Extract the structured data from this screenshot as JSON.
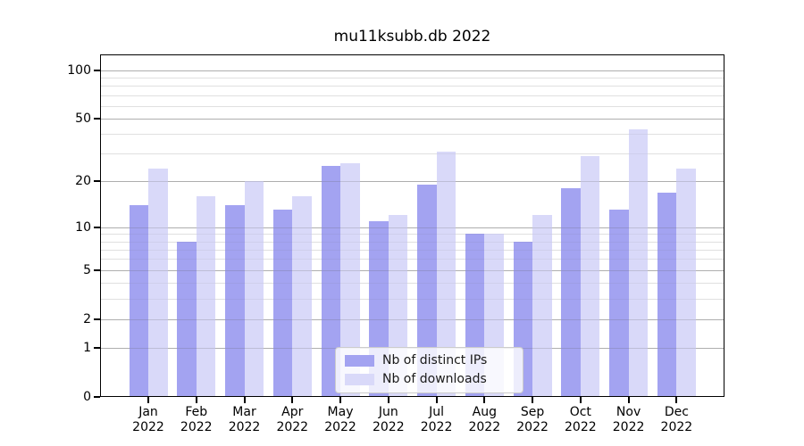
{
  "title": "mu11ksubb.db 2022",
  "colors": {
    "bar_distinct_ips": "#a3a3f1",
    "bar_downloads": "#d9d9f9",
    "grid_major": "#c6c6c6",
    "grid_minor": "#ececec",
    "axis": "#000000",
    "legend_border": "#cccccc"
  },
  "legend": {
    "items": [
      {
        "label": "Nb of distinct IPs",
        "color_key": "bar_distinct_ips"
      },
      {
        "label": "Nb of downloads",
        "color_key": "bar_downloads"
      }
    ]
  },
  "axes": {
    "y_scale": "log1p",
    "y_max": 125,
    "y_major_ticks": [
      100,
      50,
      20,
      10,
      5,
      2,
      1,
      0
    ],
    "y_minor_gridlines": [
      3,
      4,
      6,
      7,
      8,
      9,
      30,
      40,
      60,
      70,
      80,
      90
    ],
    "x_year": "2022"
  },
  "chart_data": {
    "type": "bar",
    "title": "mu11ksubb.db 2022",
    "categories": [
      "Jan",
      "Feb",
      "Mar",
      "Apr",
      "May",
      "Jun",
      "Jul",
      "Aug",
      "Sep",
      "Oct",
      "Nov",
      "Dec"
    ],
    "year": "2022",
    "series": [
      {
        "name": "Nb of distinct IPs",
        "values": [
          14,
          8,
          14,
          13,
          25,
          11,
          19,
          9,
          8,
          18,
          13,
          17
        ]
      },
      {
        "name": "Nb of downloads",
        "values": [
          24,
          16,
          20,
          16,
          26,
          12,
          31,
          9,
          12,
          29,
          43,
          24
        ]
      }
    ],
    "xlabel": "",
    "ylabel": "",
    "ylim": [
      0,
      125
    ],
    "yticks": [
      0,
      1,
      2,
      5,
      10,
      20,
      50,
      100
    ],
    "scale": "log1p",
    "grid": true,
    "legend_position": "lower center"
  }
}
